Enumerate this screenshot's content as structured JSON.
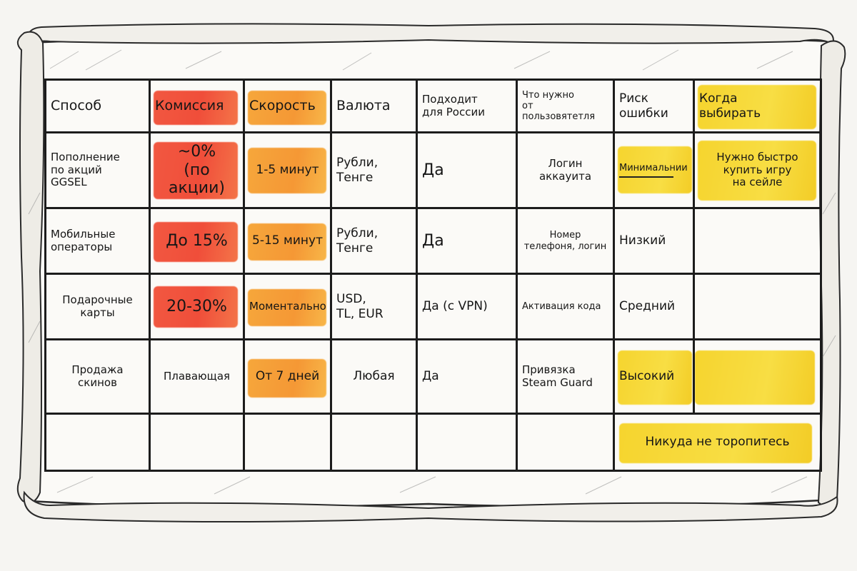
{
  "table": {
    "headers": [
      "Способ",
      "Комиссия",
      "Скорость",
      "Валюта",
      "Подходит\nдля России",
      "Что нужно\nот пользовятетля",
      "Риск\nошибки",
      "Когда\nвыбирать"
    ],
    "rows": [
      [
        "Пополнение\nпо акций\nGGSEL",
        "~0%\n(по акции)",
        "1-5 минут",
        "Рубли,\nТенге",
        "Да",
        "Логин\nаккауита",
        "Минимальнии",
        "Нужно быстро\nкупить игру\nна сейле"
      ],
      [
        "Мобильные\nоператоры",
        "До 15%",
        "5-15 минут",
        "Рубли,\nТенге",
        "Да",
        "Номер\nтелефоня, логин",
        "Низкий",
        ""
      ],
      [
        "Подарочные\nкарты",
        "20-30%",
        "Моментально",
        "USD,\nTL, EUR",
        "Да (с VPN)",
        "Активация кода",
        "Средний",
        ""
      ],
      [
        "Продажа\nскинов",
        "Плавающая",
        "От 7 дней",
        "Любая",
        "Да",
        "Привязка\nSteam Guard",
        "Высокий",
        ""
      ],
      [
        "",
        "",
        "",
        "",
        "",
        "",
        "",
        ""
      ]
    ],
    "footer_note": "Никуда не торопитесь"
  },
  "colors": {
    "red": "#f0402b",
    "orange": "#f59025",
    "yellow": "#f6d21e",
    "ink": "#1c1c1c",
    "paper": "#f6f5f2"
  }
}
